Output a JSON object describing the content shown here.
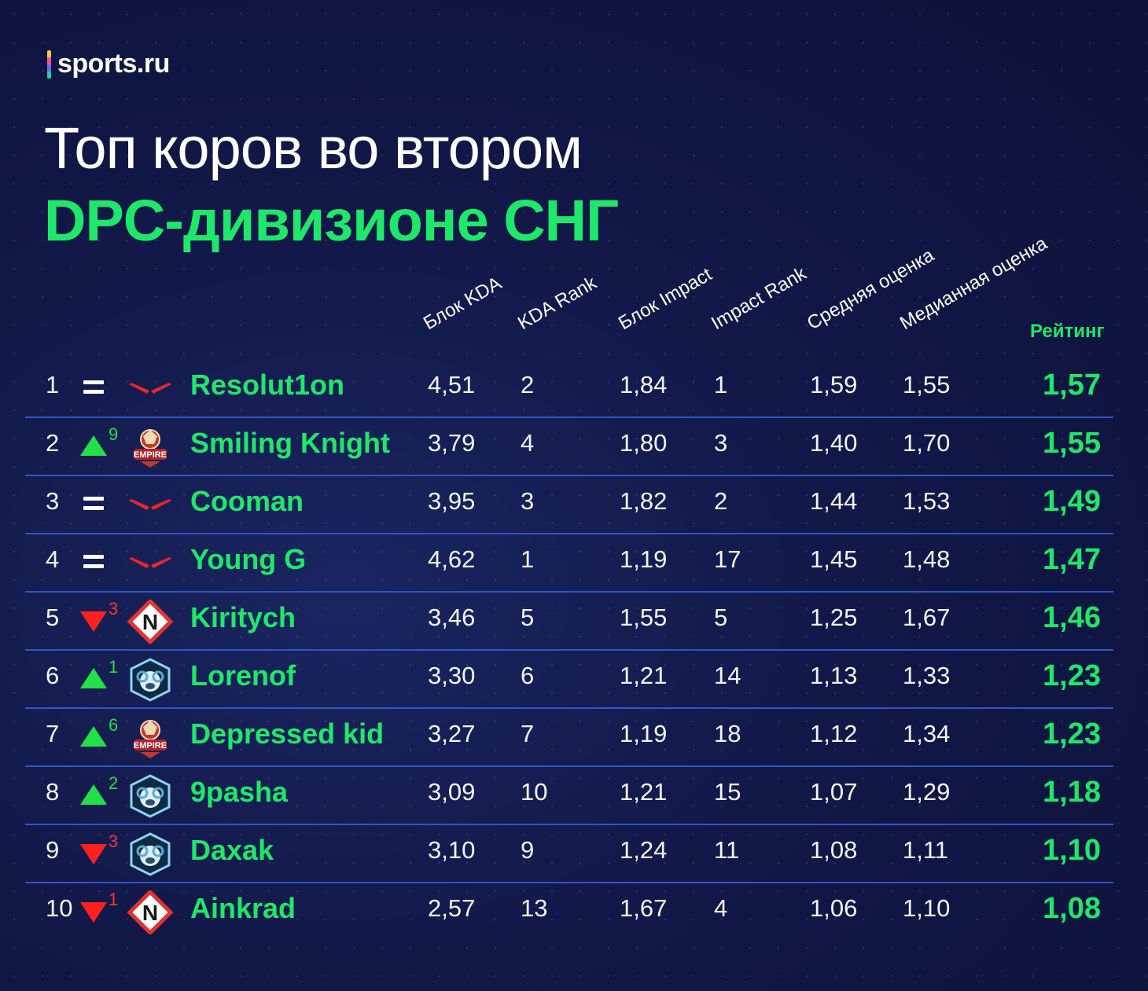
{
  "brand": {
    "name": "sports.ru"
  },
  "title": {
    "line1": "Топ коров во втором",
    "line2": "DPC-дивизионе СНГ"
  },
  "columns": {
    "kda_block": "Блок KDA",
    "kda_rank": "KDA Rank",
    "impact_block": "Блок Impact",
    "impact_rank": "Impact Rank",
    "avg_score": "Средняя оценка",
    "median_score": "Медианная оценка",
    "rating": "Рейтинг"
  },
  "chart_data": {
    "type": "table",
    "columns": [
      "Блок KDA",
      "KDA Rank",
      "Блок Impact",
      "Impact Rank",
      "Средняя оценка",
      "Медианная оценка",
      "Рейтинг"
    ],
    "rows": [
      {
        "rank": "1",
        "change": "same",
        "delta": "",
        "team_logo": "team-logo-v-marks",
        "player": "Resolut1on",
        "kda_block": "4,51",
        "kda_rank": "2",
        "impact_block": "1,84",
        "impact_rank": "1",
        "avg": "1,59",
        "median": "1,55",
        "rating": "1,57"
      },
      {
        "rank": "2",
        "change": "up",
        "delta": "9",
        "team_logo": "team-empire-logo",
        "player": "Smiling Knight",
        "kda_block": "3,79",
        "kda_rank": "4",
        "impact_block": "1,80",
        "impact_rank": "3",
        "avg": "1,40",
        "median": "1,70",
        "rating": "1,55"
      },
      {
        "rank": "3",
        "change": "same",
        "delta": "",
        "team_logo": "team-logo-v-marks",
        "player": "Cooman",
        "kda_block": "3,95",
        "kda_rank": "3",
        "impact_block": "1,82",
        "impact_rank": "2",
        "avg": "1,44",
        "median": "1,53",
        "rating": "1,49"
      },
      {
        "rank": "4",
        "change": "same",
        "delta": "",
        "team_logo": "team-logo-v-marks",
        "player": "Young G",
        "kda_block": "4,62",
        "kda_rank": "1",
        "impact_block": "1,19",
        "impact_rank": "17",
        "avg": "1,45",
        "median": "1,48",
        "rating": "1,47"
      },
      {
        "rank": "5",
        "change": "down",
        "delta": "3",
        "team_logo": "nemiga-n-logo",
        "player": "Kiritych",
        "kda_block": "3,46",
        "kda_rank": "5",
        "impact_block": "1,55",
        "impact_rank": "5",
        "avg": "1,25",
        "median": "1,67",
        "rating": "1,46"
      },
      {
        "rank": "6",
        "change": "up",
        "delta": "1",
        "team_logo": "ram-shield-logo",
        "player": "Lorenof",
        "kda_block": "3,30",
        "kda_rank": "6",
        "impact_block": "1,21",
        "impact_rank": "14",
        "avg": "1,13",
        "median": "1,33",
        "rating": "1,23"
      },
      {
        "rank": "7",
        "change": "up",
        "delta": "6",
        "team_logo": "team-empire-logo",
        "player": "Depressed kid",
        "kda_block": "3,27",
        "kda_rank": "7",
        "impact_block": "1,19",
        "impact_rank": "18",
        "avg": "1,12",
        "median": "1,34",
        "rating": "1,23"
      },
      {
        "rank": "8",
        "change": "up",
        "delta": "2",
        "team_logo": "ram-shield-logo",
        "player": "9pasha",
        "kda_block": "3,09",
        "kda_rank": "10",
        "impact_block": "1,21",
        "impact_rank": "15",
        "avg": "1,07",
        "median": "1,29",
        "rating": "1,18"
      },
      {
        "rank": "9",
        "change": "down",
        "delta": "3",
        "team_logo": "ram-shield-logo",
        "player": "Daxak",
        "kda_block": "3,10",
        "kda_rank": "9",
        "impact_block": "1,24",
        "impact_rank": "11",
        "avg": "1,08",
        "median": "1,11",
        "rating": "1,10"
      },
      {
        "rank": "10",
        "change": "down",
        "delta": "1",
        "team_logo": "nemiga-n-logo",
        "player": "Ainkrad",
        "kda_block": "2,57",
        "kda_rank": "13",
        "impact_block": "1,67",
        "impact_rank": "4",
        "avg": "1,06",
        "median": "1,10",
        "rating": "1,08"
      }
    ]
  },
  "colors": {
    "accent": "#1ee86a",
    "up": "#22e04a",
    "down": "#ff2020",
    "divider": "#2f56c9",
    "background": "#121848"
  }
}
